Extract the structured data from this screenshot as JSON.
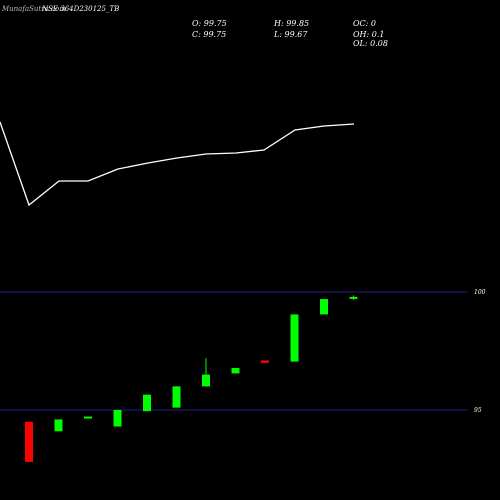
{
  "header": {
    "label1": "MunafaSutra.com",
    "label2": "NSE 364D230125_TB"
  },
  "ohlc": {
    "open": "O: 99.75",
    "high": "H: 99.85",
    "oc": "OC: 0",
    "close": "C: 99.75",
    "low": "L: 99.67",
    "oh": "OH: 0.1",
    "ol": "OL: 0.08"
  },
  "colors": {
    "background": "#000000",
    "up": "#00ff00",
    "down": "#ff0000",
    "grid": "#1e1e8c",
    "line": "#ffffff"
  },
  "chart_data": {
    "type": "candlestick",
    "ylim": [
      93.55,
      100.25
    ],
    "y_ticks": [
      {
        "value": 100,
        "label": "100"
      },
      {
        "value": 95,
        "label": "95"
      }
    ],
    "candles": [
      {
        "open": 94.5,
        "high": 94.5,
        "close": 92.8,
        "low": 92.8
      },
      {
        "open": 94.1,
        "high": 94.6,
        "close": 94.6,
        "low": 94.1
      },
      {
        "open": 94.65,
        "high": 94.72,
        "close": 94.68,
        "low": 94.65
      },
      {
        "open": 94.3,
        "high": 95.0,
        "close": 95.0,
        "low": 94.3
      },
      {
        "open": 94.95,
        "high": 95.65,
        "close": 95.65,
        "low": 94.95
      },
      {
        "open": 95.1,
        "high": 96.0,
        "close": 96.0,
        "low": 95.1
      },
      {
        "open": 96.0,
        "high": 97.2,
        "close": 96.5,
        "low": 96.0
      },
      {
        "open": 96.55,
        "high": 96.78,
        "close": 96.78,
        "low": 96.55
      },
      {
        "open": 97.1,
        "high": 97.1,
        "close": 97.0,
        "low": 97.0
      },
      {
        "open": 97.05,
        "high": 99.05,
        "close": 99.05,
        "low": 97.05
      },
      {
        "open": 99.05,
        "high": 99.7,
        "close": 99.7,
        "low": 99.05
      },
      {
        "open": 99.75,
        "high": 99.85,
        "close": 99.75,
        "low": 99.67
      }
    ],
    "line": {
      "values": [
        122,
        205,
        181,
        181,
        169,
        163,
        158,
        154,
        153,
        150,
        130,
        126,
        124
      ],
      "ylim": [
        265,
        90
      ]
    }
  }
}
